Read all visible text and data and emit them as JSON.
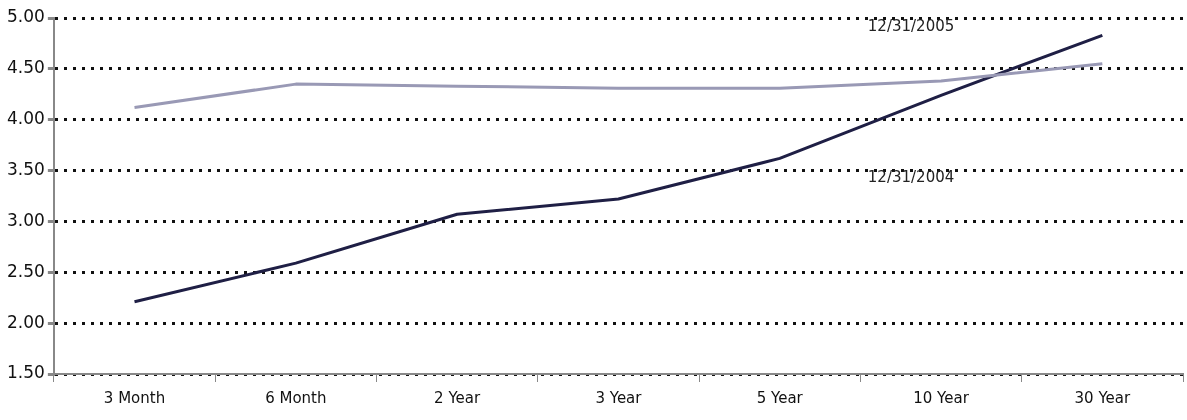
{
  "chart_data": {
    "type": "line",
    "categories": [
      "3 Month",
      "6 Month",
      "2 Year",
      "3 Year",
      "5 Year",
      "10 Year",
      "30 Year"
    ],
    "series": [
      {
        "name": "12/31/2005",
        "color": "#9999b5",
        "values": [
          4.12,
          4.35,
          4.33,
          4.31,
          4.31,
          4.38,
          4.55
        ]
      },
      {
        "name": "12/31/2004",
        "color": "#1f1f45",
        "values": [
          2.21,
          2.59,
          3.07,
          3.22,
          3.62,
          4.24,
          4.83
        ]
      }
    ],
    "ylim": [
      1.5,
      5
    ],
    "yticks": [
      {
        "value": 1.5,
        "label": "1.50"
      },
      {
        "value": 2,
        "label": "2.00"
      },
      {
        "value": 2.5,
        "label": "2.50"
      },
      {
        "value": 3,
        "label": "3.00"
      },
      {
        "value": 3.5,
        "label": "3.50"
      },
      {
        "value": 4,
        "label": "4.00"
      },
      {
        "value": 4.5,
        "label": "4.50"
      },
      {
        "value": 5,
        "label": "5.00"
      }
    ],
    "grid": "y",
    "legend": false,
    "marker": "none",
    "line_style": "solid"
  }
}
